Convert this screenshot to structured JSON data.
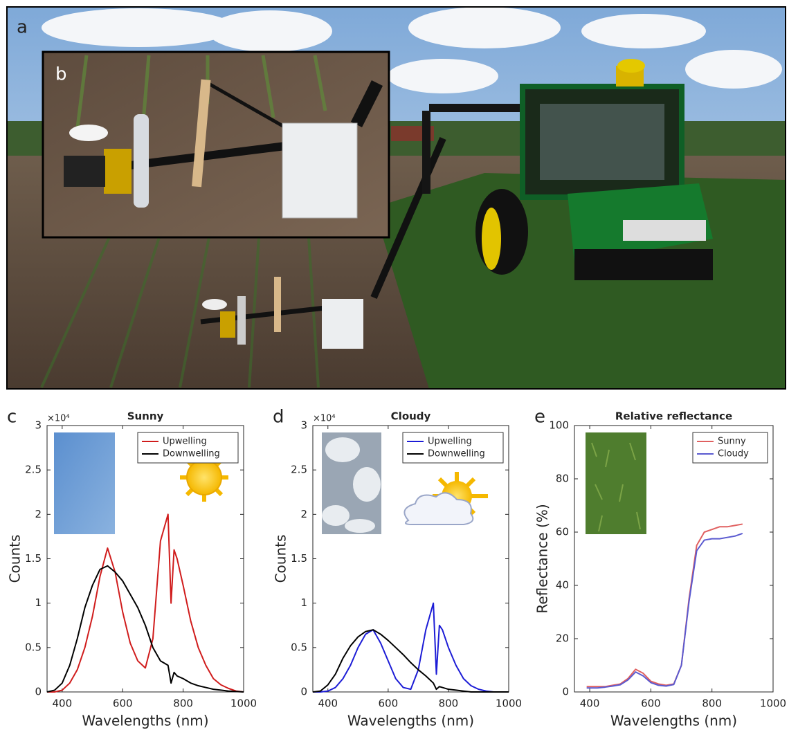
{
  "photo": {
    "labels": [
      "a",
      "b"
    ]
  },
  "chart_data": [
    {
      "type": "line",
      "panel_label": "c",
      "title": "Sunny",
      "x_label": "Wavelengths (nm)",
      "y_label": "Counts",
      "y_exponent_label": "×10⁴",
      "x": [
        350,
        375,
        400,
        425,
        450,
        475,
        500,
        525,
        550,
        575,
        600,
        625,
        650,
        675,
        700,
        725,
        750,
        760,
        770,
        780,
        800,
        825,
        850,
        875,
        900,
        925,
        950,
        975,
        1000
      ],
      "series": [
        {
          "name": "Upwelling",
          "color": "#d01c1c",
          "values": [
            0,
            0,
            0.02,
            0.1,
            0.25,
            0.5,
            0.85,
            1.3,
            1.62,
            1.35,
            0.9,
            0.55,
            0.35,
            0.27,
            0.6,
            1.7,
            2.0,
            1.0,
            1.6,
            1.5,
            1.2,
            0.8,
            0.5,
            0.3,
            0.15,
            0.08,
            0.04,
            0.01,
            0
          ]
        },
        {
          "name": "Downwelling",
          "color": "#000000",
          "values": [
            0,
            0.02,
            0.1,
            0.3,
            0.6,
            0.95,
            1.2,
            1.38,
            1.42,
            1.35,
            1.25,
            1.1,
            0.95,
            0.75,
            0.5,
            0.35,
            0.3,
            0.1,
            0.22,
            0.18,
            0.15,
            0.1,
            0.07,
            0.05,
            0.03,
            0.02,
            0.01,
            0.005,
            0
          ]
        }
      ],
      "xlim": [
        350,
        1000
      ],
      "xticks": [
        400,
        600,
        800,
        1000
      ],
      "ylim": [
        0,
        3
      ],
      "yticks": [
        0,
        0.5,
        1,
        1.5,
        2,
        2.5,
        3
      ],
      "legend": "upper right",
      "grid": false
    },
    {
      "type": "line",
      "panel_label": "d",
      "title": "Cloudy",
      "x_label": "Wavelengths (nm)",
      "y_label": "Counts",
      "y_exponent_label": "×10⁴",
      "x": [
        350,
        375,
        400,
        425,
        450,
        475,
        500,
        525,
        550,
        575,
        600,
        625,
        650,
        675,
        700,
        725,
        750,
        760,
        770,
        780,
        800,
        825,
        850,
        875,
        900,
        925,
        950,
        975,
        1000
      ],
      "series": [
        {
          "name": "Upwelling",
          "color": "#1c1cd6",
          "values": [
            0,
            0,
            0.01,
            0.05,
            0.15,
            0.3,
            0.5,
            0.65,
            0.7,
            0.55,
            0.35,
            0.15,
            0.05,
            0.03,
            0.25,
            0.7,
            1.0,
            0.2,
            0.75,
            0.7,
            0.5,
            0.3,
            0.15,
            0.07,
            0.03,
            0.01,
            0,
            0,
            0
          ]
        },
        {
          "name": "Downwelling",
          "color": "#000000",
          "values": [
            0,
            0.01,
            0.08,
            0.2,
            0.38,
            0.52,
            0.62,
            0.68,
            0.7,
            0.65,
            0.58,
            0.5,
            0.42,
            0.33,
            0.25,
            0.18,
            0.1,
            0.03,
            0.06,
            0.05,
            0.03,
            0.02,
            0.01,
            0,
            0,
            0,
            0,
            0,
            0
          ]
        }
      ],
      "xlim": [
        350,
        1000
      ],
      "xticks": [
        400,
        600,
        800,
        1000
      ],
      "ylim": [
        0,
        3
      ],
      "yticks": [
        0,
        0.5,
        1,
        1.5,
        2,
        2.5,
        3
      ],
      "legend": "upper right",
      "grid": false
    },
    {
      "type": "line",
      "panel_label": "e",
      "title": "Relative reflectance",
      "x_label": "Wavelengths (nm)",
      "y_label": "Reflectance (%)",
      "x": [
        390,
        425,
        450,
        475,
        500,
        525,
        550,
        575,
        600,
        625,
        650,
        675,
        700,
        725,
        750,
        775,
        800,
        825,
        850,
        875,
        900
      ],
      "series": [
        {
          "name": "Sunny",
          "color": "#e06060",
          "values": [
            2,
            2,
            2,
            2.5,
            3,
            5,
            8.5,
            7,
            4,
            3,
            2.5,
            3,
            10,
            35,
            55,
            60,
            61,
            62,
            62,
            62.5,
            63
          ]
        },
        {
          "name": "Cloudy",
          "color": "#5a5ad0",
          "values": [
            1.5,
            1.5,
            1.8,
            2.2,
            2.7,
            4.5,
            7.5,
            6,
            3.5,
            2.5,
            2.2,
            2.8,
            10,
            34,
            53,
            57,
            57.5,
            57.5,
            58,
            58.5,
            59.5
          ]
        }
      ],
      "xlim": [
        350,
        1000
      ],
      "xticks": [
        400,
        600,
        800,
        1000
      ],
      "ylim": [
        0,
        100
      ],
      "yticks": [
        0,
        20,
        40,
        60,
        80,
        100
      ],
      "legend": "upper right",
      "grid": false
    }
  ]
}
